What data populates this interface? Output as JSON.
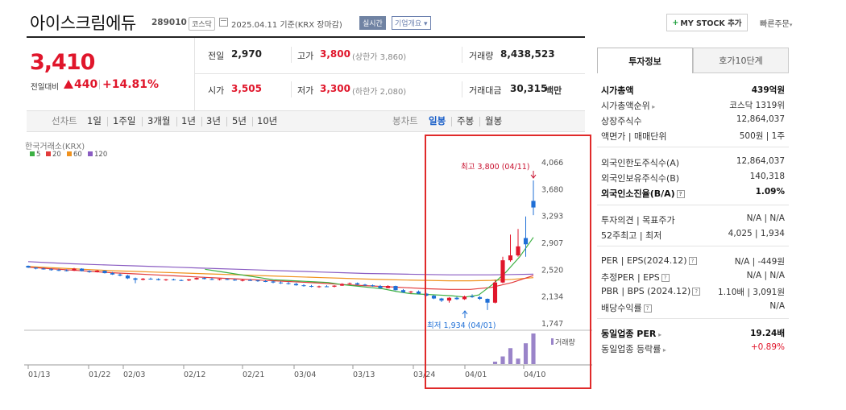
{
  "header": {
    "title": "아이스크림에듀",
    "code": "289010",
    "market": "코스닥",
    "date": "2025.04.11  기준(KRX 장마감)",
    "realtime": "실시간",
    "corp_info": "기업개요",
    "my_stock": "MY STOCK 추가",
    "quick_order": "빠른주문"
  },
  "price": {
    "current": "3,410",
    "change_label": "전일대비",
    "change_abs": "440",
    "change_pct": "+14.81%"
  },
  "summary": {
    "prev_label": "전일",
    "prev": "2,970",
    "high_label": "고가",
    "high": "3,800",
    "upper_limit": "(상한가 3,860)",
    "volume_label": "거래량",
    "volume": "8,438,523",
    "open_label": "시가",
    "open": "3,505",
    "low_label": "저가",
    "low": "3,300",
    "lower_limit": "(하한가 2,080)",
    "amount_label": "거래대금",
    "amount": "30,315",
    "amount_unit": "백만"
  },
  "periods": {
    "line_label": "선차트",
    "line_items": [
      "1일",
      "1주일",
      "3개월",
      "1년",
      "3년",
      "5년",
      "10년"
    ],
    "candle_label": "봉차트",
    "candle_items": [
      "일봉",
      "주봉",
      "월봉"
    ],
    "active": "일봉"
  },
  "chart_data": {
    "type": "candlestick",
    "source": "한국거래소(KRX)",
    "legend": [
      {
        "name": "5",
        "color": "#3cb043"
      },
      {
        "name": "20",
        "color": "#e23b3b"
      },
      {
        "name": "60",
        "color": "#f0921e"
      },
      {
        "name": "120",
        "color": "#8a5cc2"
      }
    ],
    "y_ticks": [
      "4,066",
      "3,680",
      "3,293",
      "2,907",
      "2,520",
      "2,134",
      "1,747"
    ],
    "ylim": [
      1747,
      4066
    ],
    "x_ticks": [
      "01/13",
      "01/22",
      "02/03",
      "02/12",
      "02/21",
      "03/04",
      "03/13",
      "03/24",
      "04/01",
      "04/10"
    ],
    "high_annotation": "최고 3,800 (04/11)",
    "low_annotation": "최저 1,934 (04/01)",
    "volume_label": "거래량",
    "candles": [
      [
        2570,
        2575,
        2540,
        2545
      ],
      [
        2545,
        2550,
        2520,
        2530
      ],
      [
        2530,
        2545,
        2515,
        2520
      ],
      [
        2520,
        2535,
        2500,
        2510
      ],
      [
        2510,
        2530,
        2495,
        2505
      ],
      [
        2505,
        2520,
        2490,
        2500
      ],
      [
        2500,
        2540,
        2495,
        2530
      ],
      [
        2530,
        2535,
        2490,
        2495
      ],
      [
        2495,
        2505,
        2470,
        2480
      ],
      [
        2480,
        2510,
        2475,
        2500
      ],
      [
        2500,
        2505,
        2460,
        2465
      ],
      [
        2465,
        2480,
        2440,
        2445
      ],
      [
        2445,
        2460,
        2420,
        2430
      ],
      [
        2430,
        2440,
        2380,
        2390
      ],
      [
        2390,
        2400,
        2320,
        2370
      ],
      [
        2370,
        2395,
        2360,
        2385
      ],
      [
        2385,
        2400,
        2370,
        2380
      ],
      [
        2380,
        2390,
        2360,
        2365
      ],
      [
        2365,
        2380,
        2355,
        2375
      ],
      [
        2375,
        2385,
        2360,
        2365
      ],
      [
        2365,
        2375,
        2350,
        2360
      ],
      [
        2360,
        2380,
        2350,
        2375
      ],
      [
        2375,
        2400,
        2370,
        2395
      ],
      [
        2395,
        2405,
        2375,
        2380
      ],
      [
        2380,
        2395,
        2365,
        2370
      ],
      [
        2370,
        2385,
        2360,
        2380
      ],
      [
        2380,
        2390,
        2365,
        2370
      ],
      [
        2370,
        2380,
        2355,
        2360
      ],
      [
        2360,
        2375,
        2345,
        2365
      ],
      [
        2365,
        2380,
        2355,
        2360
      ],
      [
        2360,
        2370,
        2340,
        2350
      ],
      [
        2350,
        2365,
        2335,
        2345
      ],
      [
        2345,
        2355,
        2320,
        2330
      ],
      [
        2330,
        2345,
        2310,
        2320
      ],
      [
        2320,
        2340,
        2300,
        2310
      ],
      [
        2310,
        2325,
        2285,
        2290
      ],
      [
        2290,
        2305,
        2270,
        2280
      ],
      [
        2280,
        2295,
        2260,
        2270
      ],
      [
        2270,
        2285,
        2255,
        2275
      ],
      [
        2275,
        2290,
        2265,
        2270
      ],
      [
        2270,
        2290,
        2260,
        2285
      ],
      [
        2285,
        2320,
        2280,
        2310
      ],
      [
        2310,
        2330,
        2300,
        2320
      ],
      [
        2320,
        2330,
        2295,
        2300
      ],
      [
        2300,
        2310,
        2280,
        2290
      ],
      [
        2290,
        2300,
        2270,
        2280
      ],
      [
        2280,
        2295,
        2240,
        2250
      ],
      [
        2250,
        2290,
        2245,
        2280
      ],
      [
        2280,
        2285,
        2215,
        2220
      ],
      [
        2220,
        2235,
        2180,
        2190
      ],
      [
        2190,
        2210,
        2170,
        2200
      ],
      [
        2200,
        2215,
        2160,
        2170
      ],
      [
        2170,
        2180,
        2130,
        2140
      ],
      [
        2140,
        2150,
        2090,
        2100
      ],
      [
        2100,
        2110,
        2050,
        2070
      ],
      [
        2070,
        2120,
        2040,
        2110
      ],
      [
        2110,
        2125,
        2080,
        2090
      ],
      [
        2090,
        2140,
        2080,
        2130
      ],
      [
        2130,
        2160,
        2110,
        2120
      ],
      [
        2120,
        2135,
        2080,
        2095
      ],
      [
        2095,
        2100,
        1934,
        2040
      ],
      [
        2040,
        2370,
        2030,
        2330
      ],
      [
        2330,
        2700,
        2320,
        2650
      ],
      [
        2650,
        3020,
        2630,
        2720
      ],
      [
        2720,
        3100,
        2700,
        2850
      ],
      [
        2970,
        3280,
        2700,
        2880
      ],
      [
        3505,
        3800,
        3300,
        3410
      ]
    ],
    "volumes": [
      0,
      0,
      0,
      0,
      0,
      0,
      0,
      0,
      0,
      0,
      0,
      0,
      0,
      0,
      0,
      0,
      0,
      0,
      0,
      0,
      0,
      0,
      0,
      0,
      0,
      0,
      0,
      0,
      0,
      0,
      0,
      0,
      0,
      0,
      0,
      0,
      0,
      0,
      0,
      0,
      0,
      0,
      0,
      0,
      0,
      0,
      0,
      0,
      0,
      0,
      0,
      0,
      0,
      0,
      0,
      0,
      0,
      0,
      0,
      0,
      0,
      0.08,
      0.25,
      0.52,
      0.18,
      0.68,
      1.0
    ],
    "ma5": [
      2520,
      2490,
      2460,
      2430,
      2400,
      2370,
      2360,
      2350,
      2340,
      2330,
      2300,
      2280,
      2260,
      2240,
      2200,
      2170,
      2160,
      2150,
      2140,
      2120,
      2150,
      2300,
      2480,
      2700,
      2980
    ],
    "ma20": [
      2550,
      2530,
      2510,
      2490,
      2470,
      2455,
      2440,
      2425,
      2410,
      2395,
      2380,
      2365,
      2350,
      2335,
      2320,
      2300,
      2285,
      2270,
      2255,
      2240,
      2230,
      2230,
      2260,
      2330,
      2430
    ],
    "ma60": [
      2560,
      2545,
      2530,
      2515,
      2500,
      2490,
      2480,
      2470,
      2460,
      2450,
      2440,
      2430,
      2420,
      2410,
      2400,
      2390,
      2380,
      2372,
      2365,
      2360,
      2355,
      2355,
      2360,
      2375,
      2400
    ],
    "ma120": [
      2630,
      2615,
      2600,
      2590,
      2580,
      2570,
      2560,
      2550,
      2540,
      2530,
      2520,
      2510,
      2500,
      2490,
      2480,
      2470,
      2460,
      2455,
      2450,
      2445,
      2440,
      2440,
      2440,
      2445,
      2450
    ]
  },
  "right_panel": {
    "tabs": [
      "투자정보",
      "호가10단계"
    ],
    "rows": [
      {
        "label": "시가총액",
        "value": "439억원",
        "bold": true
      },
      {
        "label": "시가총액순위",
        "value": "코스닥 1319위",
        "arrow": true
      },
      {
        "label": "상장주식수",
        "value": "12,864,037"
      },
      {
        "label": "액면가 | 매매단위",
        "value": "500원 | 1주"
      },
      {
        "label": "외국인한도주식수(A)",
        "value": "12,864,037"
      },
      {
        "label": "외국인보유주식수(B)",
        "value": "140,318"
      },
      {
        "label": "외국인소진율(B/A)",
        "value": "1.09%",
        "bold": true
      },
      {
        "label": "투자의견 | 목표주가",
        "value": "N/A | N/A"
      },
      {
        "label": "52주최고 | 최저",
        "value": "4,025 | 1,934"
      },
      {
        "label": "PER | EPS(2024.12)",
        "value": "N/A | -449원"
      },
      {
        "label": "추정PER | EPS",
        "value": "N/A | N/A"
      },
      {
        "label": "PBR | BPS (2024.12)",
        "value": "1.10배 | 3,091원"
      },
      {
        "label": "배당수익률",
        "value": "N/A"
      },
      {
        "label": "동일업종 PER",
        "value": "19.24배",
        "bold": true
      },
      {
        "label": "동일업종 등락률",
        "value": "+0.89%",
        "red": true
      }
    ]
  }
}
